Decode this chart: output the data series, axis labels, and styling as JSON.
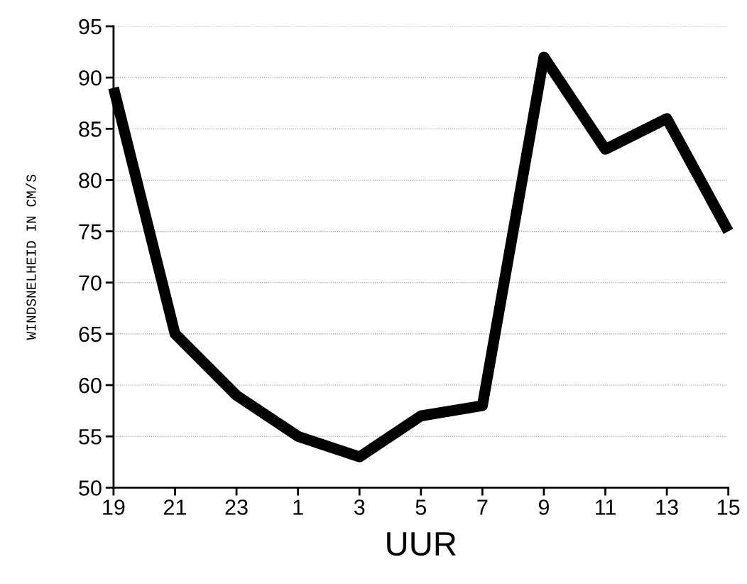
{
  "chart_data": {
    "type": "line",
    "xlabel": "UUR",
    "ylabel": "WINDSNELHEID IN CM/S",
    "categories": [
      "19",
      "21",
      "23",
      "1",
      "3",
      "5",
      "7",
      "9",
      "11",
      "13",
      "15"
    ],
    "series": [
      {
        "color": "#000000",
        "values": [
          89,
          65,
          59,
          55,
          53,
          57,
          58,
          92,
          83,
          86,
          75
        ]
      }
    ],
    "ylim": [
      50,
      95
    ],
    "yticks": [
      50,
      55,
      60,
      65,
      70,
      75,
      80,
      85,
      90,
      95
    ],
    "grid": "y",
    "marker": "none",
    "line_style": "solid"
  }
}
